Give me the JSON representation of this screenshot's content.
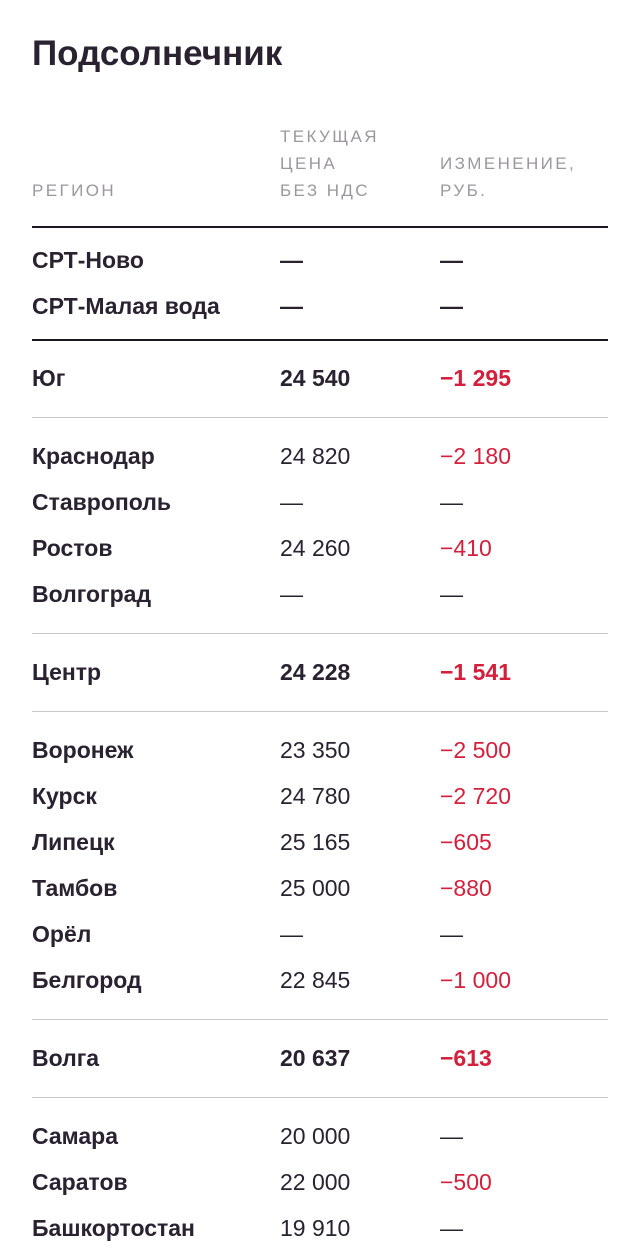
{
  "title": "Подсолнечник",
  "headers": {
    "region": "РЕГИОН",
    "price": "ТЕКУЩАЯ\nЦЕНА\nБЕЗ НДС",
    "change": "ИЗМЕНЕНИЕ,\nРУБ."
  },
  "srt_rows": [
    {
      "region": "СРТ-Ново",
      "price": "—",
      "change": "—"
    },
    {
      "region": "СРТ-Малая вода",
      "price": "—",
      "change": "—"
    }
  ],
  "groups": [
    {
      "region": "Юг",
      "price": "24 540",
      "change": "−1 295",
      "items": [
        {
          "region": "Краснодар",
          "price": "24 820",
          "change": "−2 180"
        },
        {
          "region": "Ставрополь",
          "price": "—",
          "change": "—"
        },
        {
          "region": "Ростов",
          "price": "24 260",
          "change": "−410"
        },
        {
          "region": "Волгоград",
          "price": "—",
          "change": "—"
        }
      ]
    },
    {
      "region": "Центр",
      "price": "24 228",
      "change": "−1 541",
      "items": [
        {
          "region": "Воронеж",
          "price": "23 350",
          "change": "−2 500"
        },
        {
          "region": "Курск",
          "price": "24 780",
          "change": "−2 720"
        },
        {
          "region": "Липецк",
          "price": "25 165",
          "change": "−605"
        },
        {
          "region": "Тамбов",
          "price": "25 000",
          "change": "−880"
        },
        {
          "region": "Орёл",
          "price": "—",
          "change": "—"
        },
        {
          "region": "Белгород",
          "price": "22 845",
          "change": "−1 000"
        }
      ]
    },
    {
      "region": "Волга",
      "price": "20 637",
      "change": "−613",
      "items": [
        {
          "region": "Самара",
          "price": "20 000",
          "change": "—"
        },
        {
          "region": "Саратов",
          "price": "22 000",
          "change": "−500"
        },
        {
          "region": "Башкортостан",
          "price": "19 910",
          "change": "—"
        }
      ]
    }
  ]
}
